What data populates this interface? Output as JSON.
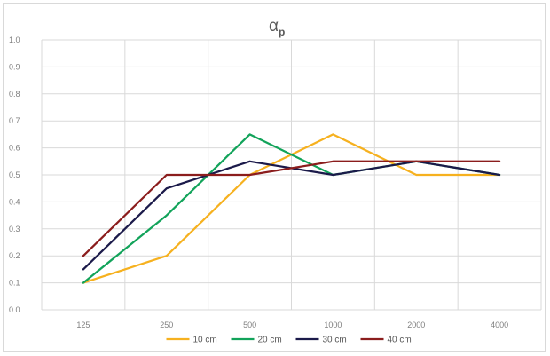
{
  "chart_data": {
    "type": "line",
    "title": "α",
    "title_subscript": "p",
    "xlabel": "",
    "ylabel": "",
    "categories": [
      "125",
      "250",
      "500",
      "1000",
      "2000",
      "4000"
    ],
    "ylim": [
      0,
      1
    ],
    "yticks": [
      "0.0",
      "0.1",
      "0.2",
      "0.3",
      "0.4",
      "0.5",
      "0.6",
      "0.7",
      "0.8",
      "0.9",
      "1.0"
    ],
    "grid": true,
    "legend_position": "bottom",
    "series": [
      {
        "name": "10 cm",
        "color": "#f6b11f",
        "values": [
          0.1,
          0.2,
          0.5,
          0.65,
          0.5,
          0.5
        ]
      },
      {
        "name": "20 cm",
        "color": "#12a35a",
        "values": [
          0.1,
          0.35,
          0.65,
          0.5,
          0.55,
          0.5
        ]
      },
      {
        "name": "30 cm",
        "color": "#1b1a4a",
        "values": [
          0.15,
          0.45,
          0.55,
          0.5,
          0.55,
          0.5
        ]
      },
      {
        "name": "40 cm",
        "color": "#8b1d1d",
        "values": [
          0.2,
          0.5,
          0.5,
          0.55,
          0.55,
          0.55
        ]
      }
    ]
  }
}
